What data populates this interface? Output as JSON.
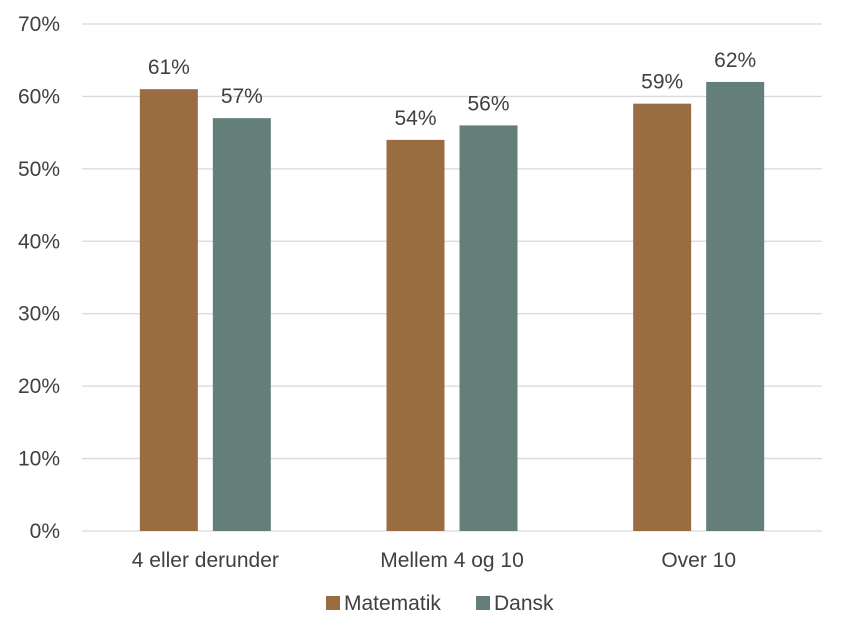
{
  "chart_data": {
    "type": "bar",
    "categories": [
      "4 eller derunder",
      "Mellem 4 og 10",
      "Over 10"
    ],
    "series": [
      {
        "name": "Matematik",
        "values": [
          61,
          54,
          59
        ],
        "labels": [
          "61%",
          "54%",
          "59%"
        ],
        "color": "#9a6c41"
      },
      {
        "name": "Dansk",
        "values": [
          57,
          56,
          62
        ],
        "labels": [
          "57%",
          "56%",
          "62%"
        ],
        "color": "#647f79"
      }
    ],
    "ylim": [
      0,
      70
    ],
    "yticks": [
      0,
      10,
      20,
      30,
      40,
      50,
      60,
      70
    ],
    "ytick_labels": [
      "0%",
      "10%",
      "20%",
      "30%",
      "40%",
      "50%",
      "60%",
      "70%"
    ],
    "grid": true,
    "legend_position": "bottom",
    "gridline_color": "#d9d9d9",
    "text_color": "#404040"
  }
}
